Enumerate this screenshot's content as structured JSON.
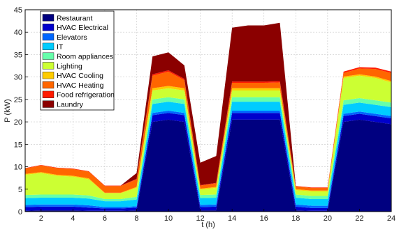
{
  "chart_data": {
    "type": "area",
    "stacked": true,
    "xlabel": "t (h)",
    "ylabel": "P (kW)",
    "xlim": [
      1,
      24
    ],
    "ylim": [
      0,
      45
    ],
    "xticks": [
      2,
      4,
      6,
      8,
      10,
      12,
      14,
      16,
      18,
      20,
      22,
      24
    ],
    "yticks": [
      0,
      5,
      10,
      15,
      20,
      25,
      30,
      35,
      40,
      45
    ],
    "grid": true,
    "legend_position": "top-left",
    "x": [
      1,
      2,
      3,
      4,
      5,
      6,
      7,
      8,
      9,
      10,
      11,
      12,
      13,
      14,
      15,
      16,
      17,
      18,
      19,
      20,
      21,
      22,
      23,
      24
    ],
    "series": [
      {
        "name": "Restaurant",
        "color": "#000080",
        "values": [
          0.2,
          0.3,
          0.3,
          0.3,
          0.2,
          0.2,
          0.2,
          0.3,
          20.0,
          20.5,
          20.0,
          0.3,
          0.3,
          20.5,
          20.5,
          20.5,
          20.5,
          0.3,
          0.2,
          0.2,
          20.0,
          20.5,
          20.0,
          19.5
        ]
      },
      {
        "name": "HVAC Electrical",
        "color": "#0000cc",
        "values": [
          0.8,
          0.8,
          0.8,
          0.8,
          0.7,
          0.5,
          0.5,
          0.6,
          1.5,
          1.5,
          1.5,
          0.7,
          0.8,
          1.5,
          1.5,
          1.5,
          1.5,
          0.8,
          0.6,
          0.6,
          1.3,
          1.3,
          1.3,
          1.3
        ]
      },
      {
        "name": "Elevators",
        "color": "#0066ff",
        "values": [
          0.5,
          0.5,
          0.5,
          0.5,
          0.5,
          0.3,
          0.3,
          0.3,
          0.5,
          0.5,
          0.5,
          0.5,
          0.5,
          0.5,
          0.5,
          0.5,
          0.5,
          0.5,
          0.5,
          0.5,
          0.5,
          0.5,
          0.5,
          0.5
        ]
      },
      {
        "name": "IT",
        "color": "#00ccff",
        "values": [
          1.5,
          1.5,
          1.5,
          1.5,
          1.5,
          1.3,
          1.3,
          1.5,
          2.0,
          2.0,
          2.0,
          1.5,
          1.5,
          2.0,
          2.0,
          2.0,
          2.0,
          1.5,
          1.5,
          1.5,
          2.0,
          2.0,
          2.0,
          2.0
        ]
      },
      {
        "name": "Room appliances",
        "color": "#66ffaa",
        "values": [
          0.7,
          0.7,
          0.7,
          0.7,
          0.7,
          0.5,
          0.5,
          0.6,
          1.0,
          1.0,
          1.0,
          0.7,
          0.7,
          1.0,
          1.0,
          1.0,
          1.0,
          0.7,
          0.7,
          0.7,
          1.0,
          1.0,
          1.0,
          1.0
        ]
      },
      {
        "name": "Lighting",
        "color": "#ccff33",
        "values": [
          4.5,
          4.8,
          4.2,
          4.0,
          3.6,
          1.3,
          1.3,
          2.0,
          2.0,
          2.0,
          2.0,
          1.2,
          1.5,
          1.5,
          1.5,
          1.5,
          1.5,
          1.0,
          1.0,
          1.0,
          5.0,
          5.0,
          5.0,
          4.5
        ]
      },
      {
        "name": "HVAC Cooling",
        "color": "#ffcc00",
        "values": [
          0.2,
          0.2,
          0.2,
          0.2,
          0.2,
          0.1,
          0.1,
          0.2,
          0.5,
          0.5,
          0.5,
          0.2,
          0.2,
          0.5,
          0.5,
          0.5,
          0.5,
          0.2,
          0.2,
          0.2,
          0.3,
          0.3,
          0.3,
          0.3
        ]
      },
      {
        "name": "HVAC Heating",
        "color": "#ff6600",
        "values": [
          1.2,
          1.5,
          1.5,
          1.5,
          1.5,
          1.5,
          1.5,
          1.7,
          2.8,
          3.2,
          1.8,
          0.7,
          0.8,
          1.2,
          1.2,
          1.2,
          1.3,
          0.6,
          0.6,
          0.6,
          0.8,
          1.3,
          1.7,
          1.8
        ]
      },
      {
        "name": "Food refrigeration",
        "color": "#ff1a00",
        "values": [
          0.1,
          0.1,
          0.1,
          0.1,
          0.1,
          0.1,
          0.1,
          0.1,
          0.3,
          0.3,
          0.3,
          0.1,
          0.1,
          0.3,
          0.3,
          0.3,
          0.3,
          0.1,
          0.1,
          0.1,
          0.3,
          0.3,
          0.3,
          0.3
        ]
      },
      {
        "name": "Laundry",
        "color": "#8b0000",
        "values": [
          0.0,
          0.0,
          0.0,
          0.0,
          0.0,
          0.0,
          0.0,
          1.3,
          4.0,
          4.0,
          3.0,
          5.0,
          6.0,
          12.0,
          12.5,
          12.5,
          13.0,
          0.0,
          0.0,
          0.0,
          0.0,
          0.0,
          0.0,
          0.0
        ]
      }
    ]
  }
}
